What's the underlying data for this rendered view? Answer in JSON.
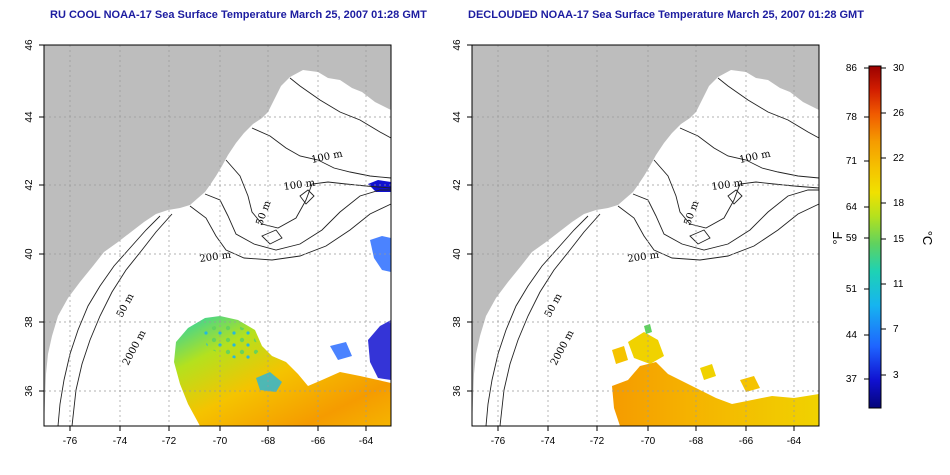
{
  "titles": {
    "left": "RU COOL NOAA-17 Sea Surface Temperature March 25, 2007 01:28 GMT",
    "right": "DECLOUDED NOAA-17 Sea Surface Temperature March 25, 2007 01:28 GMT"
  },
  "axes": {
    "lon_ticks": [
      "-76",
      "-74",
      "-72",
      "-70",
      "-68",
      "-66",
      "-64"
    ],
    "lat_ticks": [
      "46",
      "44",
      "42",
      "40",
      "38",
      "36"
    ]
  },
  "contour_labels": [
    "100 m",
    "100 m",
    "50 m",
    "200 m",
    "50 m",
    "2000 m"
  ],
  "colorbar": {
    "fahrenheit_ticks": [
      "86",
      "78",
      "71",
      "64",
      "59",
      "51",
      "44",
      "37"
    ],
    "celsius_ticks": [
      "30",
      "26",
      "22",
      "18",
      "15",
      "11",
      "7",
      "3"
    ],
    "fahrenheit_unit": "°F",
    "celsius_unit": "°C",
    "colors": [
      "#05057a",
      "#1010d0",
      "#1e64ff",
      "#16b4f0",
      "#1ed2b4",
      "#5fd25f",
      "#b4e11e",
      "#f0e100",
      "#f5c300",
      "#f59b00",
      "#f05a00",
      "#d21e00",
      "#9b0000"
    ]
  },
  "colors": {
    "land": "#bdbdbd",
    "ocean": "#ffffff",
    "title": "#1c1ca0"
  }
}
